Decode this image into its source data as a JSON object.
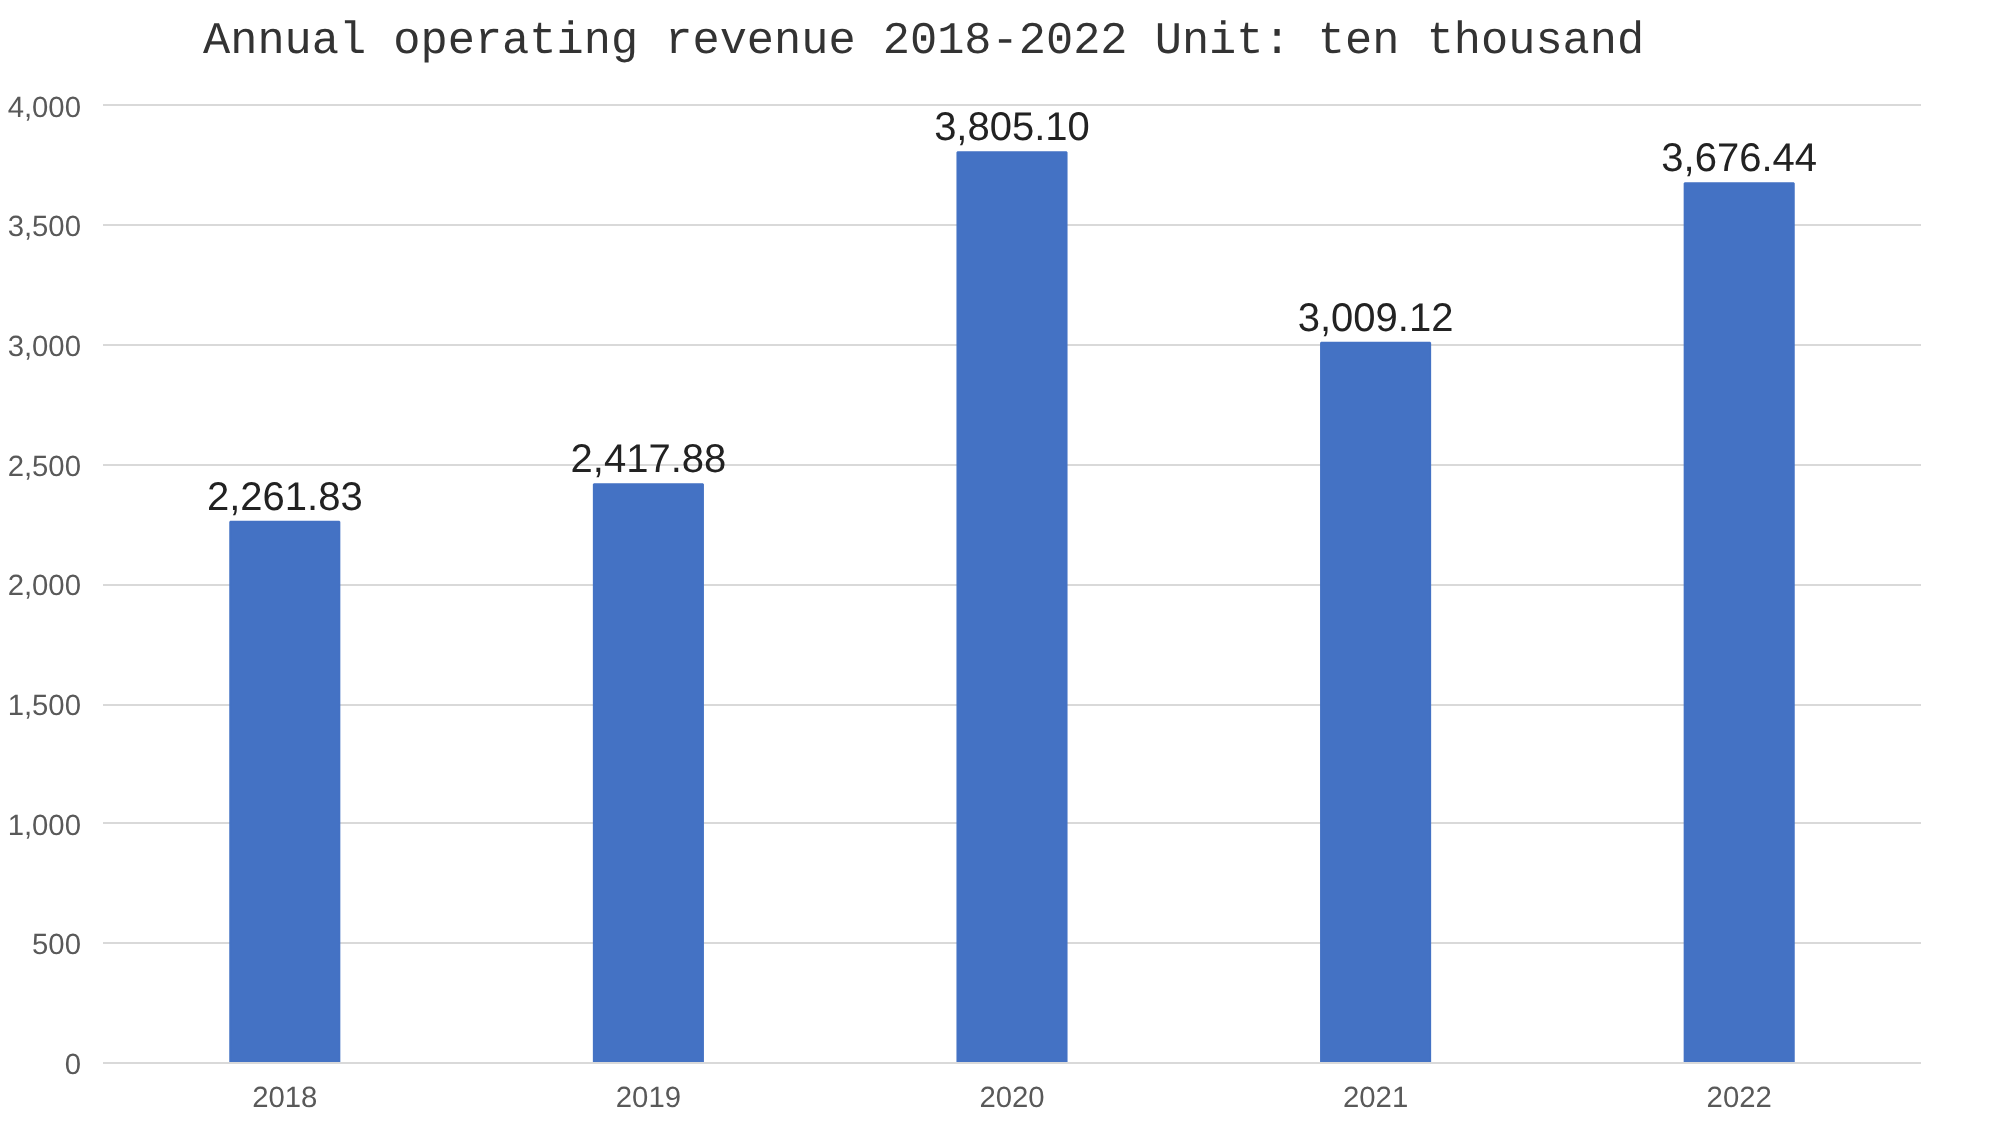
{
  "chart_data": {
    "type": "bar",
    "title": "Annual operating revenue 2018-2022     Unit: ten thousand",
    "categories": [
      "2018",
      "2019",
      "2020",
      "2021",
      "2022"
    ],
    "values": [
      2261.83,
      2417.88,
      3805.1,
      3009.12,
      3676.44
    ],
    "value_labels": [
      "2,261.83",
      "2,417.88",
      "3,805.10",
      "3,009.12",
      "3,676.44"
    ],
    "color": "#4472c4",
    "ylim": [
      0,
      4000
    ],
    "yticks": [
      0,
      500,
      {
        "value": 1000,
        "label": "1,000"
      },
      {
        "value": 1500,
        "label": "1,500"
      },
      {
        "value": 2000,
        "label": "2,000"
      },
      {
        "value": 2500,
        "label": "2,500"
      },
      {
        "value": 3000,
        "label": "3,000"
      },
      {
        "value": 3500,
        "label": "3,500"
      },
      {
        "value": 4000,
        "label": "4,000"
      }
    ],
    "grid": "y"
  }
}
